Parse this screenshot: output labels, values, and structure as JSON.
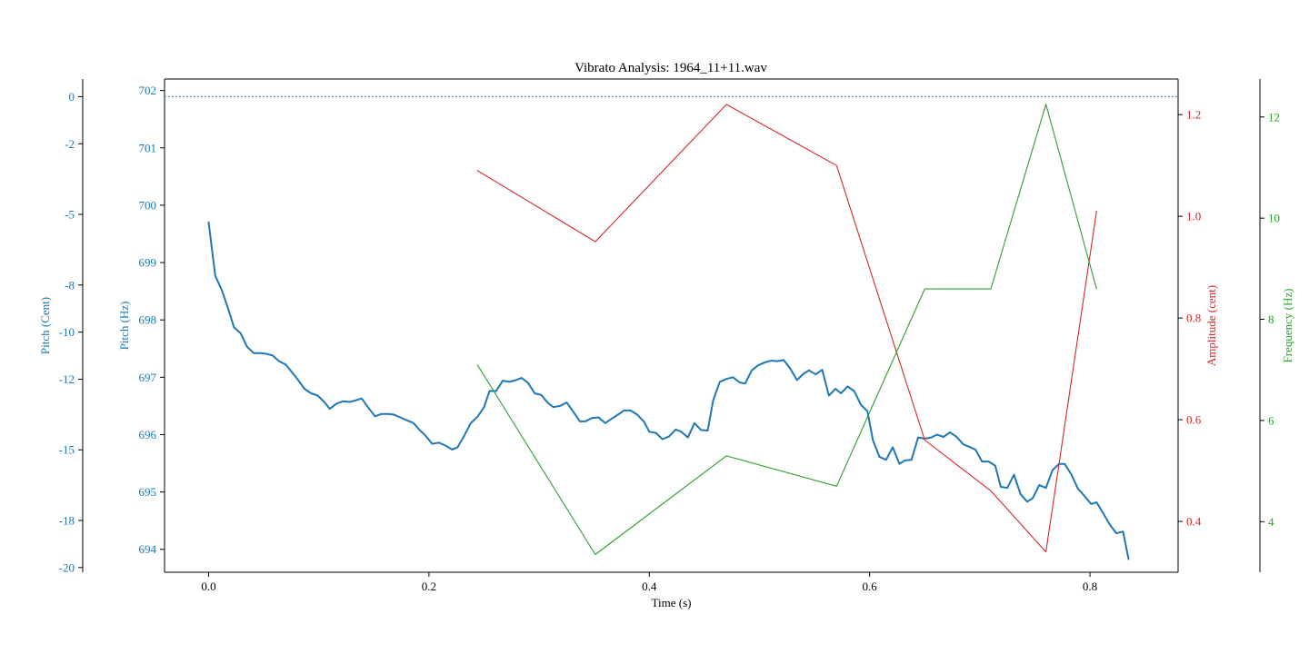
{
  "chart_data": {
    "type": "line",
    "title": "Vibrato Analysis: 1964_11+11.wav",
    "xlabel": "Time (s)",
    "xlim": [
      -0.04,
      0.88
    ],
    "xticks": [
      0.0,
      0.2,
      0.4,
      0.6,
      0.8
    ],
    "xtick_labels": [
      "0.0",
      "0.2",
      "0.4",
      "0.6",
      "0.8"
    ],
    "axes": {
      "pitch_cent": {
        "label": "Pitch (Cent)",
        "ylim": [
          -20.2,
          0.75
        ],
        "ticks": [
          0,
          -2,
          -5,
          -8,
          -10,
          -12,
          -15,
          -18,
          -20
        ],
        "tick_labels": [
          "0",
          "-2",
          "-5",
          "-8",
          "-10",
          "-12",
          "-15",
          "-18",
          "-20"
        ],
        "color": "#1f77b4"
      },
      "pitch_hz": {
        "label": "Pitch (Hz)",
        "ylim": [
          693.6,
          702.2
        ],
        "ticks": [
          694,
          695,
          696,
          697,
          698,
          699,
          700,
          701,
          702
        ],
        "tick_labels": [
          "694",
          "695",
          "696",
          "697",
          "698",
          "699",
          "700",
          "701",
          "702"
        ],
        "color": "#1f77b4"
      },
      "amplitude": {
        "label": "Amplitude (cent)",
        "ylim": [
          0.3,
          1.27
        ],
        "ticks": [
          0.4,
          0.6,
          0.8,
          1.0,
          1.2
        ],
        "tick_labels": [
          "0.4",
          "0.6",
          "0.8",
          "1.0",
          "1.2"
        ],
        "color": "#d62728"
      },
      "frequency": {
        "label": "Frequency (Hz)",
        "ylim": [
          3.0,
          12.75
        ],
        "ticks": [
          4,
          6,
          8,
          10,
          12
        ],
        "tick_labels": [
          "4",
          "6",
          "8",
          "10",
          "12"
        ],
        "color": "#2ca02c"
      }
    },
    "reference_line": {
      "axis": "pitch_cent",
      "y": 0,
      "style": "dotted",
      "color": "#1f77b4"
    },
    "series": [
      {
        "axis": "pitch_hz",
        "color": "#1f77b4",
        "x": [
          0.0,
          0.006,
          0.012,
          0.018,
          0.023,
          0.029,
          0.035,
          0.041,
          0.047,
          0.052,
          0.058,
          0.064,
          0.07,
          0.076,
          0.081,
          0.087,
          0.093,
          0.099,
          0.105,
          0.11,
          0.116,
          0.122,
          0.128,
          0.134,
          0.139,
          0.145,
          0.151,
          0.157,
          0.163,
          0.168,
          0.174,
          0.18,
          0.186,
          0.192,
          0.197,
          0.203,
          0.209,
          0.215,
          0.221,
          0.226,
          0.232,
          0.238,
          0.244,
          0.25,
          0.255,
          0.261,
          0.267,
          0.273,
          0.279,
          0.284,
          0.29,
          0.296,
          0.302,
          0.308,
          0.313,
          0.319,
          0.325,
          0.331,
          0.337,
          0.342,
          0.348,
          0.354,
          0.36,
          0.366,
          0.371,
          0.377,
          0.383,
          0.389,
          0.395,
          0.4,
          0.406,
          0.412,
          0.418,
          0.424,
          0.429,
          0.435,
          0.441,
          0.447,
          0.453,
          0.458,
          0.464,
          0.47,
          0.476,
          0.482,
          0.487,
          0.493,
          0.499,
          0.505,
          0.511,
          0.516,
          0.522,
          0.528,
          0.534,
          0.54,
          0.545,
          0.551,
          0.557,
          0.563,
          0.569,
          0.574,
          0.58,
          0.586,
          0.592,
          0.598,
          0.603,
          0.609,
          0.615,
          0.621,
          0.627,
          0.632,
          0.638,
          0.644,
          0.65,
          0.656,
          0.661,
          0.667,
          0.673,
          0.679,
          0.685,
          0.69,
          0.696,
          0.702,
          0.708,
          0.714,
          0.719,
          0.725,
          0.731,
          0.737,
          0.743,
          0.748,
          0.754,
          0.76,
          0.766,
          0.772,
          0.777,
          0.783,
          0.789,
          0.795,
          0.801,
          0.806,
          0.812,
          0.818,
          0.824,
          0.83,
          0.835
        ],
        "y": [
          699.7,
          698.77,
          698.52,
          698.18,
          697.87,
          697.77,
          697.53,
          697.42,
          697.42,
          697.41,
          697.38,
          697.28,
          697.22,
          697.08,
          696.96,
          696.8,
          696.72,
          696.68,
          696.57,
          696.45,
          696.54,
          696.58,
          696.57,
          696.6,
          696.63,
          696.47,
          696.32,
          696.36,
          696.36,
          696.35,
          696.3,
          696.25,
          696.2,
          696.07,
          695.98,
          695.84,
          695.86,
          695.81,
          695.74,
          695.78,
          695.98,
          696.2,
          696.31,
          696.48,
          696.76,
          696.76,
          696.94,
          696.92,
          696.95,
          696.99,
          696.9,
          696.72,
          696.69,
          696.55,
          696.48,
          696.5,
          696.56,
          696.4,
          696.23,
          696.23,
          696.29,
          696.3,
          696.2,
          696.28,
          696.34,
          696.42,
          696.42,
          696.35,
          696.23,
          696.05,
          696.03,
          695.92,
          695.97,
          696.09,
          696.05,
          695.95,
          696.2,
          696.08,
          696.07,
          696.6,
          696.92,
          696.97,
          697.0,
          696.91,
          696.89,
          697.12,
          697.21,
          697.26,
          697.29,
          697.28,
          697.3,
          697.15,
          696.95,
          697.06,
          697.12,
          697.05,
          697.13,
          696.68,
          696.8,
          696.72,
          696.84,
          696.76,
          696.52,
          696.41,
          695.9,
          695.61,
          695.56,
          695.78,
          695.49,
          695.55,
          695.56,
          695.95,
          695.93,
          695.95,
          696.0,
          695.96,
          696.04,
          695.96,
          695.83,
          695.79,
          695.74,
          695.53,
          695.53,
          695.46,
          695.09,
          695.07,
          695.3,
          694.96,
          694.83,
          694.89,
          695.12,
          695.07,
          695.38,
          695.49,
          695.49,
          695.31,
          695.06,
          694.93,
          694.79,
          694.82,
          694.63,
          694.43,
          694.28,
          694.31,
          693.83
        ]
      },
      {
        "axis": "amplitude",
        "color": "#d62728",
        "x": [
          0.244,
          0.351,
          0.47,
          0.57,
          0.65,
          0.71,
          0.76,
          0.806
        ],
        "y": [
          1.09,
          0.95,
          1.22,
          1.1,
          0.56,
          0.46,
          0.34,
          1.01
        ]
      },
      {
        "axis": "frequency",
        "color": "#2ca02c",
        "x": [
          0.244,
          0.351,
          0.47,
          0.57,
          0.65,
          0.71,
          0.76,
          0.806
        ],
        "y": [
          7.1,
          3.35,
          5.3,
          4.7,
          8.6,
          8.6,
          12.25,
          8.6
        ]
      }
    ]
  }
}
